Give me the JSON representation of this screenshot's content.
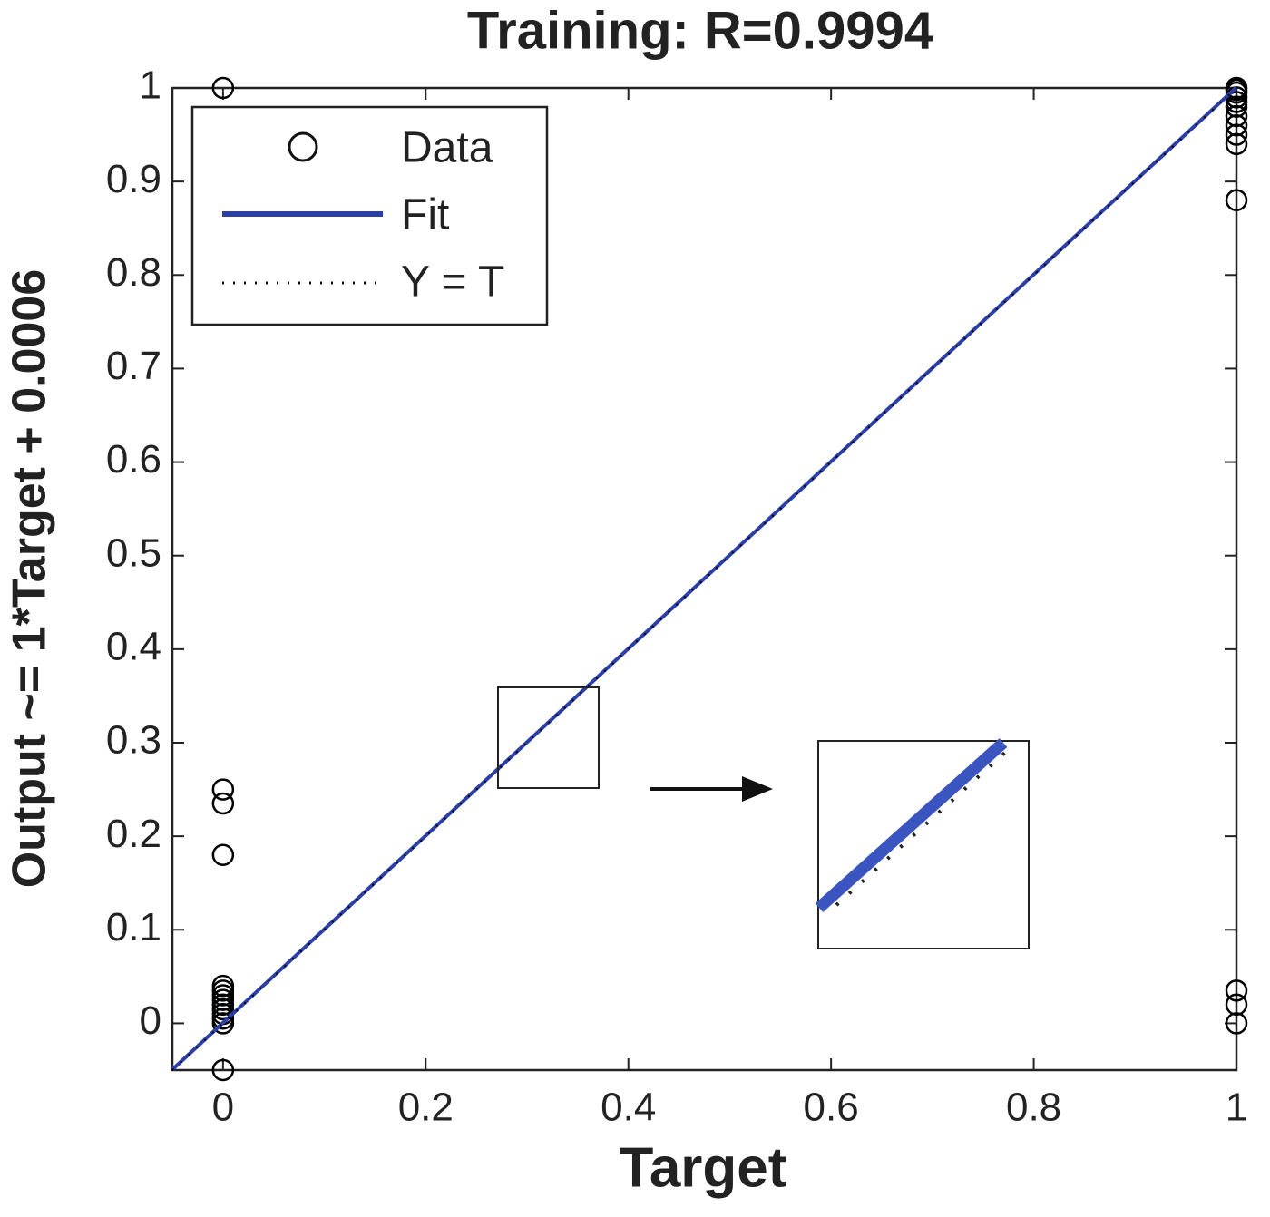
{
  "chart_data": {
    "type": "scatter",
    "title": "Training: R=0.9994",
    "xlabel": "Target",
    "ylabel": "Output ~= 1*Target + 0.0006",
    "xlim": [
      -0.05,
      1
    ],
    "ylim": [
      -0.05,
      1
    ],
    "xticks": [
      0,
      0.2,
      0.4,
      0.6,
      0.8,
      1
    ],
    "yticks": [
      0,
      0.1,
      0.2,
      0.3,
      0.4,
      0.5,
      0.6,
      0.7,
      0.8,
      0.9,
      1
    ],
    "series": [
      {
        "name": "Data",
        "color": "#000000",
        "kind": "points",
        "x": [
          0,
          0,
          0,
          0,
          0,
          0,
          0,
          0,
          0,
          0,
          0,
          0,
          0,
          0,
          1,
          1,
          1,
          1,
          1,
          1,
          1,
          1,
          1,
          1,
          1,
          1,
          1,
          1
        ],
        "values": [
          1,
          0.25,
          0.235,
          0.18,
          -0.05,
          0.04,
          0.035,
          0.03,
          0.025,
          0.02,
          0.015,
          0.01,
          0.005,
          0,
          1,
          0.998,
          0.995,
          0.99,
          0.985,
          0.98,
          0.97,
          0.96,
          0.95,
          0.94,
          0.88,
          0.035,
          0.02,
          0
        ]
      },
      {
        "name": "Fit",
        "color": "#2b3fa8",
        "kind": "line",
        "x": [
          -0.05,
          1
        ],
        "values": [
          -0.0494,
          1.0006
        ]
      },
      {
        "name": "Y = T",
        "color": "#000000",
        "kind": "dotted",
        "x": [
          -0.05,
          1
        ],
        "values": [
          -0.05,
          1
        ]
      }
    ]
  }
}
